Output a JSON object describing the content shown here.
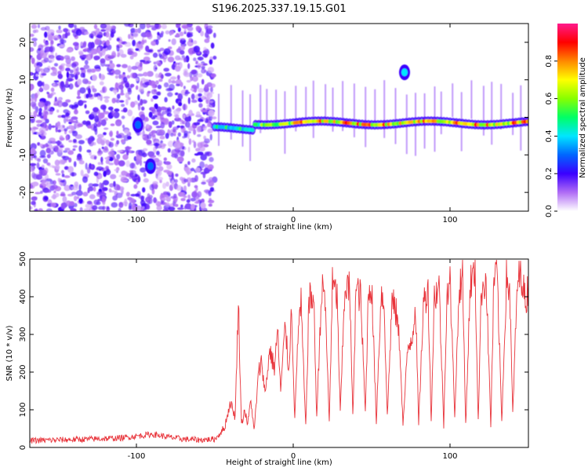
{
  "title": "S196.2025.337.19.15.G01",
  "chart_data": [
    {
      "type": "heatmap",
      "name": "spectrogram",
      "xlabel": "Height of straight line (km)",
      "ylabel": "Frequency (Hz)",
      "xlim": [
        -168,
        150
      ],
      "ylim": [
        -25,
        25
      ],
      "xticks": [
        -100,
        0,
        100
      ],
      "yticks": [
        -20,
        -10,
        0,
        10,
        20
      ],
      "xtick_labels": [
        "-100",
        "0",
        "100"
      ],
      "ytick_labels": [
        "-20",
        "-10",
        "0",
        "10",
        "20"
      ],
      "colorbar": {
        "label": "Normalized spectral amplitude",
        "range": [
          0.0,
          1.0
        ],
        "ticks": [
          0.0,
          0.2,
          0.4,
          0.6,
          0.8
        ],
        "tick_labels": [
          "0.0",
          "0.2",
          "0.4",
          "0.6",
          "0.8"
        ]
      },
      "features": [
        {
          "kind": "noise",
          "x_range": [
            -168,
            -50
          ],
          "y_range": [
            -25,
            25
          ],
          "amplitude": 0.15
        },
        {
          "kind": "track",
          "x_range": [
            -50,
            150
          ],
          "center_freq": -1.5,
          "amplitude": 0.85
        },
        {
          "kind": "spot",
          "x": 71,
          "y": 12,
          "amplitude": 0.4
        },
        {
          "kind": "spot",
          "x": -91,
          "y": -13,
          "amplitude": 0.3
        },
        {
          "kind": "spot",
          "x": -99,
          "y": -2,
          "amplitude": 0.3
        }
      ]
    },
    {
      "type": "line",
      "name": "snr",
      "xlabel": "Height of straight line (km)",
      "ylabel": "SNR (10 * v/v)",
      "xlim": [
        -168,
        150
      ],
      "ylim": [
        0,
        500
      ],
      "xticks": [
        -100,
        0,
        100
      ],
      "yticks": [
        0,
        100,
        200,
        300,
        400,
        500
      ],
      "xtick_labels": [
        "-100",
        "0",
        "100"
      ],
      "ytick_labels": [
        "0",
        "100",
        "200",
        "300",
        "400",
        "500"
      ],
      "color": "#e8333a",
      "series": [
        {
          "name": "SNR",
          "x": [
            -168,
            -150,
            -130,
            -110,
            -100,
            -90,
            -80,
            -70,
            -60,
            -50,
            -44,
            -40,
            -37,
            -35,
            -33,
            -31,
            -29,
            -27,
            -25,
            -22,
            -20,
            -18,
            -15,
            -12,
            -10,
            -8,
            -5,
            -3,
            -1,
            1,
            3,
            5,
            8,
            10,
            13,
            15,
            18,
            20,
            23,
            25,
            28,
            30,
            33,
            36,
            38,
            40,
            43,
            46,
            48,
            50,
            53,
            56,
            58,
            60,
            63,
            66,
            68,
            70,
            73,
            76,
            78,
            80,
            83,
            86,
            88,
            90,
            93,
            96,
            98,
            100,
            103,
            106,
            108,
            110,
            113,
            116,
            118,
            120,
            123,
            126,
            128,
            130,
            133,
            136,
            138,
            140,
            143,
            146,
            148,
            150
          ],
          "y": [
            18,
            20,
            22,
            25,
            30,
            35,
            28,
            22,
            20,
            22,
            50,
            120,
            80,
            390,
            60,
            100,
            60,
            130,
            40,
            200,
            230,
            140,
            260,
            210,
            310,
            150,
            330,
            200,
            370,
            70,
            300,
            380,
            50,
            390,
            400,
            80,
            410,
            420,
            70,
            430,
            400,
            90,
            430,
            420,
            80,
            420,
            400,
            90,
            420,
            430,
            70,
            410,
            380,
            80,
            390,
            350,
            270,
            60,
            260,
            300,
            380,
            60,
            380,
            420,
            70,
            400,
            430,
            60,
            410,
            440,
            90,
            430,
            450,
            60,
            440,
            460,
            70,
            420,
            450,
            60,
            440,
            470,
            70,
            450,
            420,
            90,
            440,
            460,
            380,
            430
          ]
        }
      ]
    }
  ]
}
